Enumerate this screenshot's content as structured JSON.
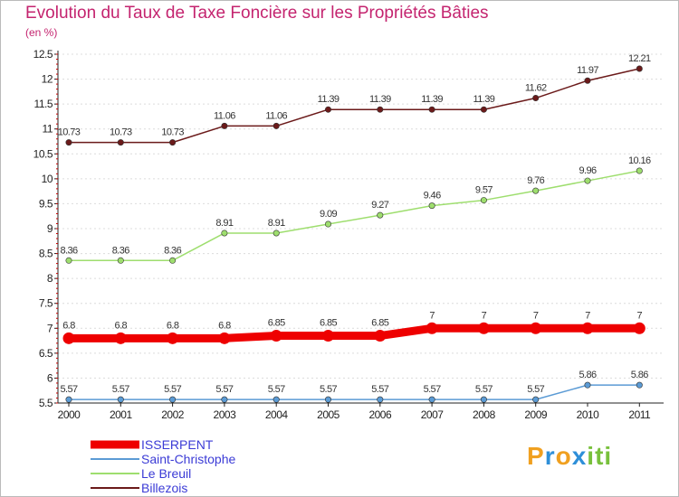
{
  "title": "Evolution du Taux de Taxe Foncière sur les Propriétés Bâties",
  "subtitle": "(en %)",
  "logo": {
    "letters": [
      "P",
      "r",
      "o",
      "x",
      "i",
      "t",
      "i"
    ],
    "colors": [
      "#f0a020",
      "#2e8fd8",
      "#f0a020",
      "#2e8fd8",
      "#78c03c",
      "#78c03c",
      "#78c03c"
    ]
  },
  "chart_data": {
    "type": "line",
    "x": [
      "2000",
      "2001",
      "2002",
      "2003",
      "2004",
      "2005",
      "2006",
      "2007",
      "2008",
      "2009",
      "2010",
      "2011"
    ],
    "ylim": [
      5.5,
      12.5
    ],
    "yticks": [
      "5.5",
      "6",
      "6.5",
      "7",
      "7.5",
      "8",
      "8.5",
      "9",
      "9.5",
      "10",
      "10.5",
      "11",
      "11.5",
      "12",
      "12.5"
    ],
    "legend_position": "bottom-left",
    "series": [
      {
        "name": "ISSERPENT",
        "color": "#ee0000",
        "values": [
          6.8,
          6.8,
          6.8,
          6.8,
          6.85,
          6.85,
          6.85,
          7,
          7,
          7,
          7,
          7
        ],
        "labels": [
          "6.8",
          "6.8",
          "6.8",
          "6.8",
          "6.85",
          "6.85",
          "6.85",
          "7",
          "7",
          "7",
          "7",
          "7"
        ]
      },
      {
        "name": "Saint-Christophe",
        "color": "#5b9bd5",
        "values": [
          5.57,
          5.57,
          5.57,
          5.57,
          5.57,
          5.57,
          5.57,
          5.57,
          5.57,
          5.57,
          5.86,
          5.86
        ],
        "labels": [
          "5.57",
          "5.57",
          "5.57",
          "5.57",
          "5.57",
          "5.57",
          "5.57",
          "5.57",
          "5.57",
          "5.57",
          "5.86",
          "5.86"
        ]
      },
      {
        "name": "Le Breuil",
        "color": "#9ede6e",
        "values": [
          8.36,
          8.36,
          8.36,
          8.91,
          8.91,
          9.09,
          9.27,
          9.46,
          9.57,
          9.76,
          9.96,
          10.16
        ],
        "labels": [
          "8.36",
          "8.36",
          "8.36",
          "8.91",
          "8.91",
          "9.09",
          "9.27",
          "9.46",
          "9.57",
          "9.76",
          "9.96",
          "10.16"
        ]
      },
      {
        "name": "Billezois",
        "color": "#6b1a1a",
        "values": [
          10.73,
          10.73,
          10.73,
          11.06,
          11.06,
          11.39,
          11.39,
          11.39,
          11.39,
          11.62,
          11.97,
          12.21
        ],
        "labels": [
          "10.73",
          "10.73",
          "10.73",
          "11.06",
          "11.06",
          "11.39",
          "11.39",
          "11.39",
          "11.39",
          "11.62",
          "11.97",
          "12.21"
        ]
      }
    ]
  }
}
